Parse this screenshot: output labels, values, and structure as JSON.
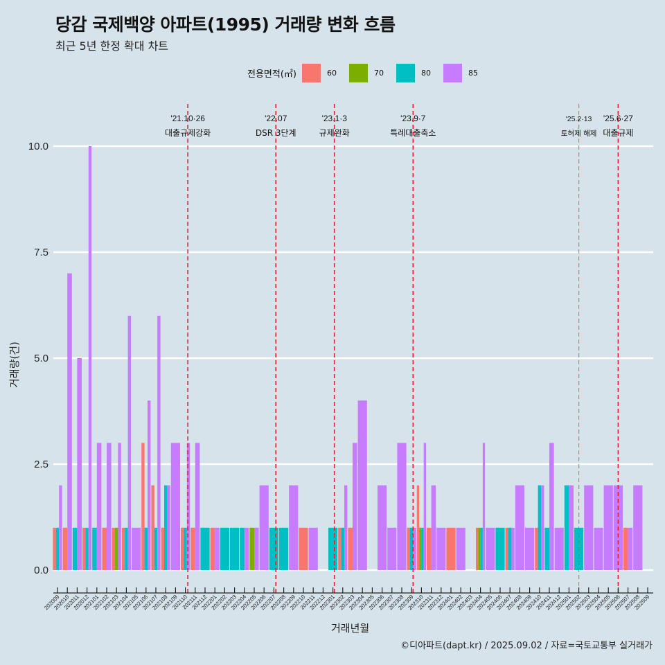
{
  "header": {
    "title": "당감 국제백양 아파트(1995) 거래량 변화 흐름",
    "subtitle": "최근 5년 한정 확대 차트"
  },
  "legend": {
    "title": "전용면적(㎡)",
    "items": [
      {
        "label": "60",
        "color": "#F8766D"
      },
      {
        "label": "70",
        "color": "#7CAE00"
      },
      {
        "label": "80",
        "color": "#00BFC4"
      },
      {
        "label": "85",
        "color": "#C77CFF"
      }
    ]
  },
  "footer": "©디아파트(dapt.kr) / 2025.09.02 / 자료=국토교통부 실거래가",
  "chart_data": {
    "type": "bar",
    "title": "당감 국제백양 아파트(1995) 거래량 변화 흐름",
    "subtitle": "최근 5년 한정 확대 차트",
    "xlabel": "거래년월",
    "ylabel": "거래량(건)",
    "ylim": [
      0,
      10
    ],
    "yticks": [
      "0.0",
      "2.5",
      "5.0",
      "7.5",
      "10.0"
    ],
    "ytick_values": [
      0,
      2.5,
      5,
      7.5,
      10
    ],
    "grid": true,
    "legend_position": "top",
    "position": "dodge",
    "categories": [
      "202009",
      "202010",
      "202011",
      "202012",
      "202101",
      "202102",
      "202103",
      "202104",
      "202105",
      "202106",
      "202107",
      "202108",
      "202109",
      "202110",
      "202111",
      "202112",
      "202201",
      "202202",
      "202203",
      "202204",
      "202205",
      "202206",
      "202207",
      "202208",
      "202209",
      "202210",
      "202211",
      "202212",
      "202301",
      "202302",
      "202303",
      "202304",
      "202305",
      "202306",
      "202307",
      "202308",
      "202309",
      "202310",
      "202311",
      "202312",
      "202401",
      "202402",
      "202403",
      "202404",
      "202405",
      "202406",
      "202407",
      "202408",
      "202409",
      "202410",
      "202411",
      "202412",
      "202501",
      "202502",
      "202503",
      "202504",
      "202505",
      "202506",
      "202507",
      "202508",
      "202509"
    ],
    "series": [
      {
        "name": "60",
        "color": "#F8766D",
        "values": [
          1,
          1,
          0,
          1,
          0,
          1,
          1,
          1,
          0,
          3,
          2,
          1,
          0,
          1,
          1,
          0,
          1,
          0,
          0,
          0,
          0,
          0,
          0,
          0,
          0,
          1,
          0,
          0,
          0,
          1,
          1,
          0,
          0,
          0,
          0,
          0,
          1,
          2,
          1,
          0,
          1,
          0,
          0,
          1,
          0,
          0,
          1,
          0,
          0,
          1,
          0,
          0,
          0,
          0,
          0,
          0,
          0,
          0,
          1,
          0,
          0
        ]
      },
      {
        "name": "70",
        "color": "#7CAE00",
        "values": [
          0,
          0,
          0,
          0,
          0,
          0,
          1,
          0,
          0,
          0,
          0,
          0,
          0,
          0,
          0,
          0,
          0,
          0,
          0,
          0,
          1,
          0,
          0,
          0,
          0,
          0,
          0,
          0,
          0,
          0,
          0,
          0,
          0,
          0,
          0,
          0,
          0,
          1,
          0,
          0,
          0,
          0,
          0,
          1,
          0,
          0,
          0,
          0,
          0,
          0,
          0,
          0,
          0,
          0,
          0,
          0,
          0,
          0,
          0,
          0,
          0
        ]
      },
      {
        "name": "80",
        "color": "#00BFC4",
        "values": [
          1,
          0,
          1,
          1,
          1,
          0,
          0,
          1,
          0,
          1,
          1,
          2,
          0,
          1,
          0,
          1,
          0,
          1,
          1,
          1,
          0,
          0,
          1,
          1,
          0,
          0,
          0,
          0,
          1,
          1,
          0,
          0,
          0,
          0,
          0,
          0,
          1,
          1,
          0,
          0,
          0,
          0,
          0,
          1,
          0,
          1,
          1,
          0,
          0,
          2,
          1,
          0,
          2,
          1,
          0,
          0,
          0,
          0,
          0,
          0,
          0
        ]
      },
      {
        "name": "85",
        "color": "#C77CFF",
        "values": [
          2,
          7,
          5,
          10,
          3,
          3,
          3,
          6,
          1,
          4,
          6,
          2,
          3,
          3,
          3,
          0,
          1,
          0,
          0,
          1,
          1,
          2,
          0,
          0,
          2,
          0,
          1,
          0,
          0,
          2,
          3,
          4,
          0,
          2,
          1,
          3,
          1,
          3,
          2,
          1,
          0,
          1,
          0,
          3,
          1,
          0,
          1,
          2,
          1,
          2,
          3,
          1,
          2,
          0,
          2,
          1,
          2,
          2,
          1,
          2,
          0
        ]
      }
    ],
    "annotations": [
      {
        "date_label": "'21.10·26",
        "text": "대출규제강화",
        "month": "202110",
        "offset": 0.25,
        "style": "strong"
      },
      {
        "date_label": "'22.07",
        "text": "DSR 3단계",
        "month": "202207",
        "offset": 0.2,
        "style": "strong"
      },
      {
        "date_label": "'23.1·3",
        "text": "규제완화",
        "month": "202301",
        "offset": 0.15,
        "style": "strong"
      },
      {
        "date_label": "'23.9·7",
        "text": "특례대출축소",
        "month": "202309",
        "offset": 0.15,
        "style": "strong"
      },
      {
        "date_label": "'25.2·13",
        "text": "토허제 해제",
        "month": "202502",
        "offset": 0.0,
        "style": "light"
      },
      {
        "date_label": "'25.6·27",
        "text": "대출규제",
        "month": "202506",
        "offset": 0.0,
        "style": "strong"
      }
    ]
  }
}
